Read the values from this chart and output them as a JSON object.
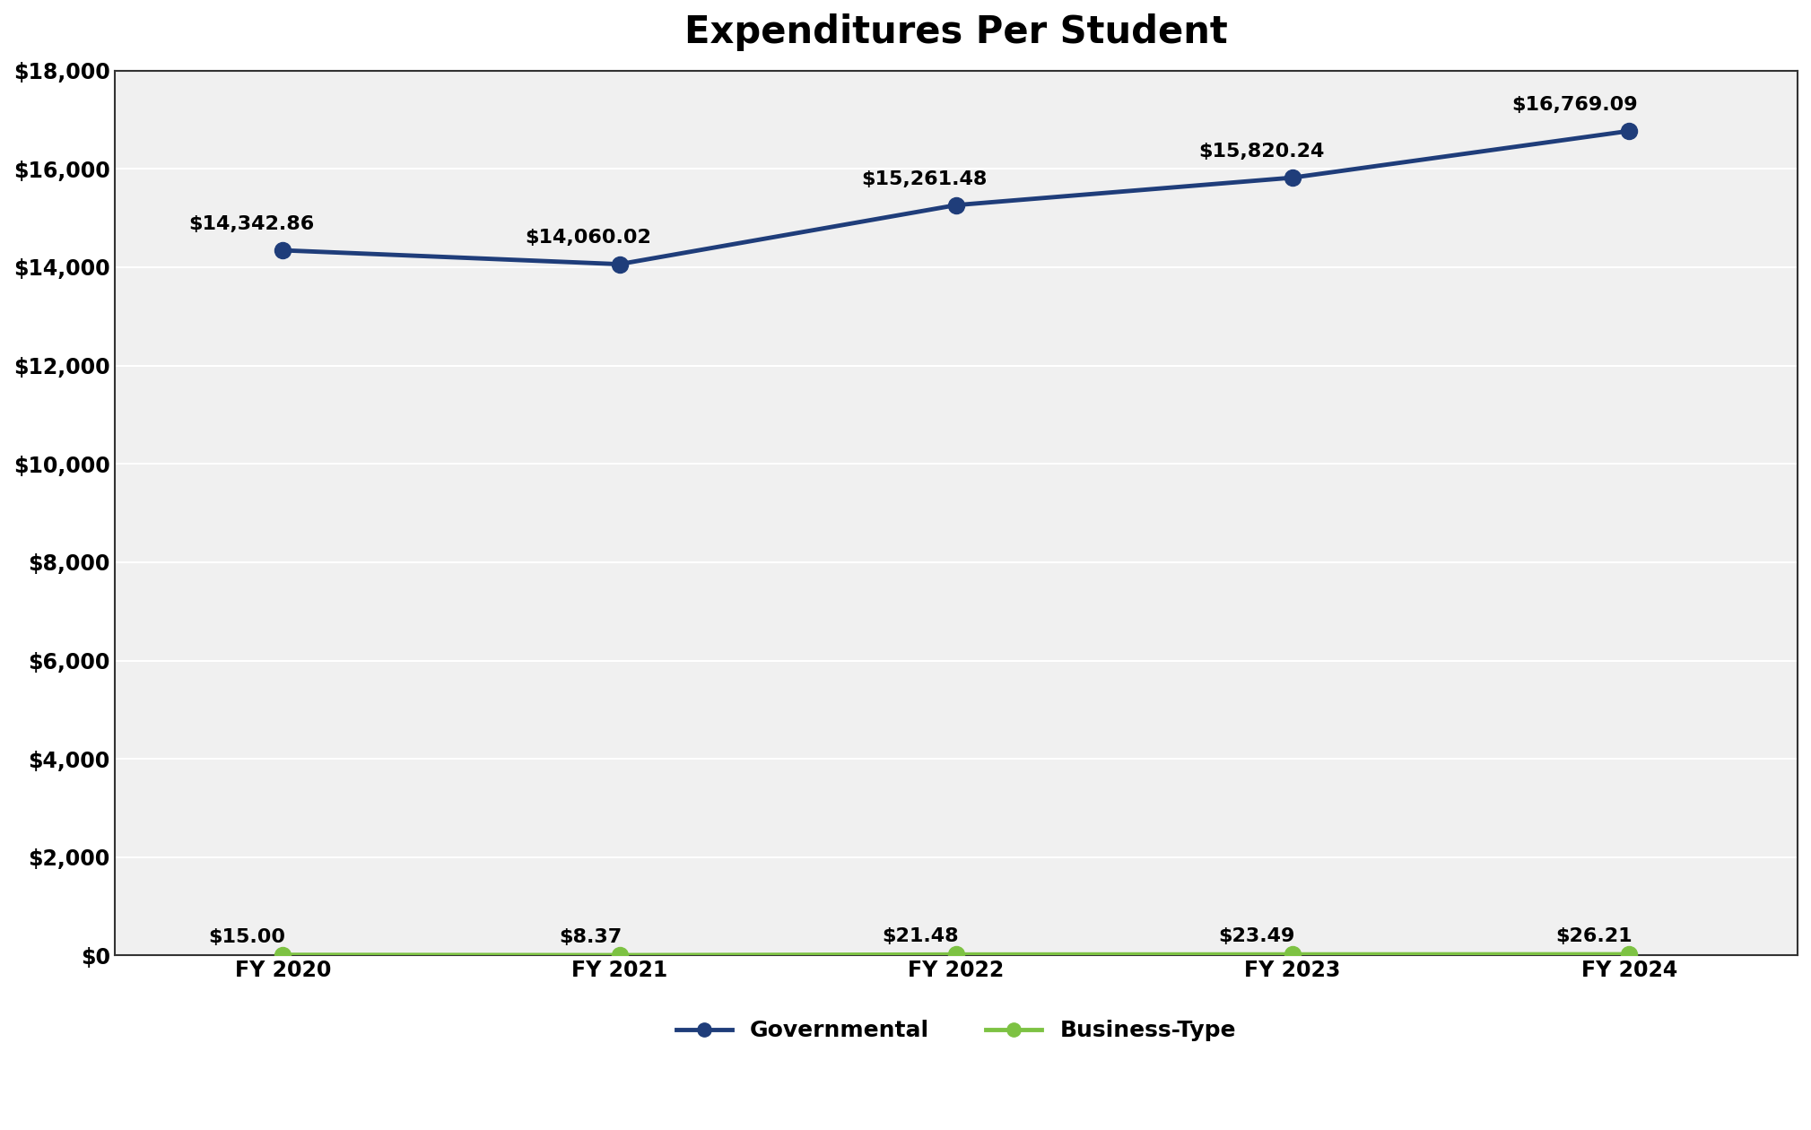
{
  "title": "Expenditures Per Student",
  "categories": [
    "FY 2020",
    "FY 2021",
    "FY 2022",
    "FY 2023",
    "FY 2024"
  ],
  "governmental_values": [
    14342.86,
    14060.02,
    15261.48,
    15820.24,
    16769.09
  ],
  "business_values": [
    15.0,
    8.37,
    21.48,
    23.49,
    26.21
  ],
  "governmental_labels": [
    "$14,342.86",
    "$14,060.02",
    "$15,261.48",
    "$15,820.24",
    "$16,769.09"
  ],
  "business_labels": [
    "$15.00",
    "$8.37",
    "$21.48",
    "$23.49",
    "$26.21"
  ],
  "gov_color": "#1f3d7a",
  "bus_color": "#7dc243",
  "ylim": [
    0,
    18000
  ],
  "yticks": [
    0,
    2000,
    4000,
    6000,
    8000,
    10000,
    12000,
    14000,
    16000,
    18000
  ],
  "ytick_labels": [
    "$0",
    "$2,000",
    "$4,000",
    "$6,000",
    "$8,000",
    "$10,000",
    "$12,000",
    "$14,000",
    "$16,000",
    "$18,000"
  ],
  "title_fontsize": 30,
  "label_fontsize": 16,
  "tick_fontsize": 17,
  "legend_fontsize": 18,
  "background_color": "#ffffff",
  "plot_bg_color": "#f0f0f0",
  "grid_color": "#ffffff",
  "spine_color": "#333333",
  "gov_label_xoffsets": [
    -0.28,
    -0.28,
    -0.28,
    -0.28,
    -0.35
  ],
  "gov_label_yoffsets": [
    350,
    350,
    350,
    350,
    350
  ],
  "bus_label_xoffsets": [
    -0.22,
    -0.18,
    -0.22,
    -0.22,
    -0.22
  ],
  "bus_label_yoffsets": [
    180,
    180,
    180,
    180,
    180
  ]
}
